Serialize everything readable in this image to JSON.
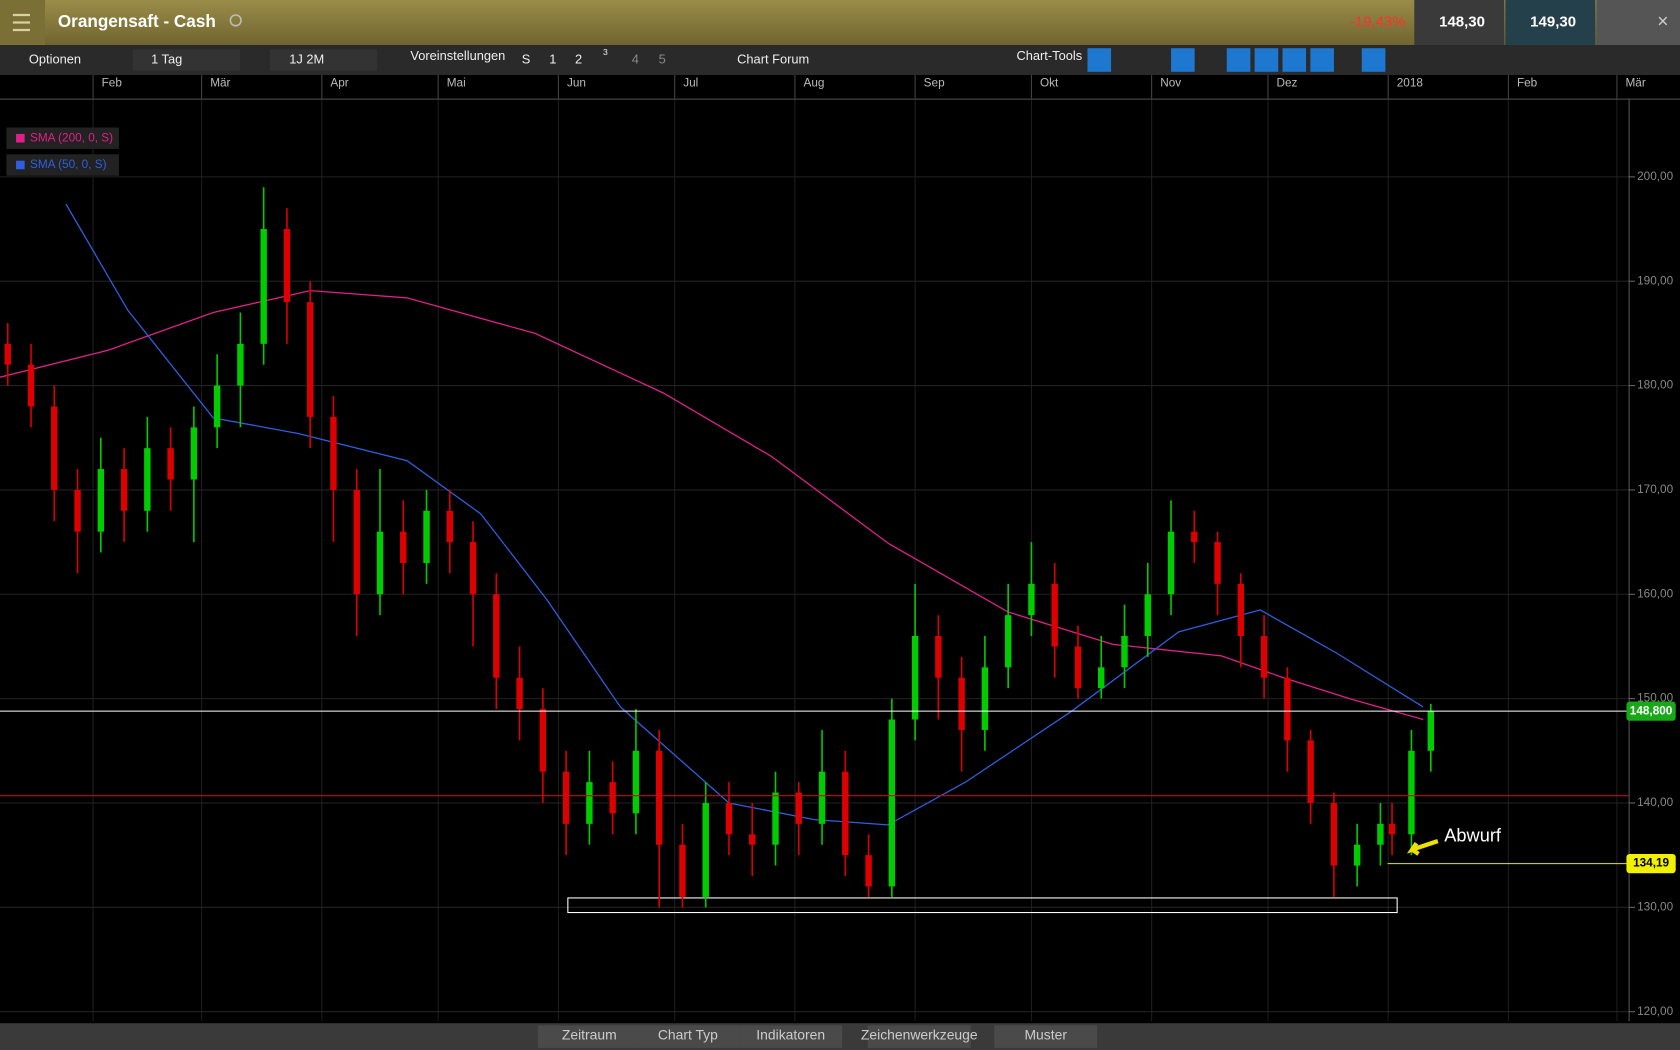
{
  "header": {
    "title": "Orangensaft - Cash",
    "change": "-19,43%",
    "bid": "148,30",
    "ask": "149,30"
  },
  "toolbar": {
    "options": "Optionen",
    "interval": "1 Tag",
    "range": "1J 2M",
    "presets": "Voreinstellungen",
    "slots": [
      "S",
      "1",
      "2",
      "3",
      "4",
      "5"
    ],
    "forum": "Chart Forum",
    "tools": "Chart-Tools"
  },
  "footer": {
    "tabs": [
      "Zeitraum",
      "Chart Typ",
      "Indikatoren",
      "Zeichenwerkzeuge",
      "Muster"
    ]
  },
  "chart_data": {
    "type": "candlestick",
    "up_color": "#00cc00",
    "down_color": "#dd0000",
    "xlim": [
      0,
      420
    ],
    "ylim": [
      119.1,
      207.4
    ],
    "xticks": [
      {
        "value": 24,
        "label": "Feb"
      },
      {
        "value": 52,
        "label": "Mär"
      },
      {
        "value": 83,
        "label": "Apr"
      },
      {
        "value": 113,
        "label": "Mai"
      },
      {
        "value": 144,
        "label": "Jun"
      },
      {
        "value": 174,
        "label": "Jul"
      },
      {
        "value": 205,
        "label": "Aug"
      },
      {
        "value": 236,
        "label": "Sep"
      },
      {
        "value": 266,
        "label": "Okt"
      },
      {
        "value": 297,
        "label": "Nov"
      },
      {
        "value": 327,
        "label": "Dez"
      },
      {
        "value": 358,
        "label": "2018"
      },
      {
        "value": 389,
        "label": "Feb"
      },
      {
        "value": 417,
        "label": "Mär"
      }
    ],
    "yticks": [
      {
        "value": 120,
        "label": "120,00"
      },
      {
        "value": 130,
        "label": "130,00"
      },
      {
        "value": 140,
        "label": "140,00"
      },
      {
        "value": 150,
        "label": "150,00"
      },
      {
        "value": 160,
        "label": "160,00"
      },
      {
        "value": 170,
        "label": "170,00"
      },
      {
        "value": 180,
        "label": "180,00"
      },
      {
        "value": 190,
        "label": "190,00"
      },
      {
        "value": 200,
        "label": "200,00"
      }
    ],
    "grid": true,
    "x": [
      2,
      8,
      14,
      20,
      26,
      32,
      38,
      44,
      50,
      56,
      62,
      68,
      74,
      80,
      86,
      92,
      98,
      104,
      110,
      116,
      122,
      128,
      134,
      140,
      146,
      152,
      158,
      164,
      170,
      176,
      182,
      188,
      194,
      200,
      206,
      212,
      218,
      224,
      230,
      236,
      242,
      248,
      254,
      260,
      266,
      272,
      278,
      284,
      290,
      296,
      302,
      308,
      314,
      320,
      326,
      332,
      338,
      344,
      350,
      356,
      359,
      364,
      369
    ],
    "open": [
      184,
      182,
      178,
      170,
      166,
      172,
      168,
      174,
      171,
      176,
      180,
      184,
      195,
      188,
      177,
      170,
      160,
      166,
      163,
      168,
      165,
      160,
      152,
      149,
      143,
      138,
      142,
      139,
      145,
      136,
      131,
      140,
      137,
      136,
      141,
      138,
      143,
      135,
      132,
      148,
      156,
      152,
      147,
      153,
      158,
      161,
      155,
      151,
      153,
      156,
      160,
      166,
      165,
      161,
      156,
      152,
      146,
      140,
      134,
      136,
      138,
      137,
      145
    ],
    "high": [
      186,
      184,
      180,
      172,
      175,
      174,
      177,
      176,
      178,
      183,
      187,
      199,
      197,
      190,
      179,
      172,
      172,
      169,
      170,
      170,
      167,
      162,
      155,
      151,
      145,
      145,
      144,
      149,
      147,
      138,
      142,
      142,
      140,
      143,
      142,
      147,
      145,
      137,
      150,
      161,
      158,
      154,
      156,
      161,
      165,
      163,
      157,
      156,
      159,
      163,
      169,
      168,
      166,
      162,
      158,
      153,
      147,
      141,
      138,
      140,
      140,
      147,
      149.5
    ],
    "low": [
      180,
      176,
      167,
      162,
      164,
      165,
      166,
      168,
      165,
      174,
      176,
      182,
      184,
      174,
      165,
      156,
      158,
      160,
      161,
      162,
      155,
      149,
      146,
      140,
      135,
      136,
      137,
      137,
      130,
      130,
      130,
      135,
      133,
      134,
      135,
      136,
      133,
      131,
      131,
      146,
      148,
      143,
      145,
      151,
      156,
      152,
      150,
      150,
      151,
      154,
      158,
      163,
      158,
      153,
      150,
      143,
      138,
      131,
      132,
      134,
      135,
      135,
      143
    ],
    "close": [
      182,
      178,
      170,
      166,
      172,
      168,
      174,
      171,
      176,
      180,
      184,
      195,
      188,
      177,
      170,
      160,
      166,
      163,
      168,
      165,
      160,
      152,
      149,
      143,
      138,
      142,
      139,
      145,
      136,
      131,
      140,
      137,
      136,
      141,
      138,
      143,
      135,
      132,
      148,
      156,
      152,
      147,
      153,
      158,
      161,
      155,
      151,
      153,
      156,
      160,
      166,
      165,
      161,
      156,
      152,
      146,
      140,
      134,
      136,
      138,
      137,
      145,
      148.8
    ],
    "lines": [
      {
        "name": "SMA (200, 0, S)",
        "color": "#e0208a",
        "x": [
          0,
          28,
          55,
          80,
          105,
          138,
          171,
          199,
          229,
          260,
          287,
          315,
          331,
          348,
          367
        ],
        "values": [
          180.8,
          183.4,
          187,
          189.1,
          188.4,
          185,
          179.3,
          173.2,
          164.9,
          158.3,
          155.2,
          154.1,
          152,
          150,
          148
        ]
      },
      {
        "name": "SMA (50, 0, S)",
        "color": "#2f5fe0",
        "x": [
          17,
          33,
          55,
          77,
          105,
          124,
          141,
          160,
          188,
          210,
          229,
          249,
          276,
          304,
          325,
          345,
          367
        ],
        "values": [
          197.4,
          187.2,
          176.9,
          175.4,
          172.8,
          167.7,
          159.5,
          149.2,
          140,
          138.4,
          137.9,
          142,
          148.7,
          156.4,
          158.5,
          154.3,
          149.2
        ]
      }
    ],
    "levels": [
      {
        "value": 148.8,
        "label": "148,800",
        "color": "#ffffff",
        "badge": "#18a818"
      },
      {
        "value": 140.7,
        "color": "#c01010"
      },
      {
        "value": 134.19,
        "label": "134,19",
        "color": "#e8e800",
        "badge": "#f0f000"
      }
    ],
    "zone": [
      129.5,
      130.9
    ],
    "annotation": "Abwurf"
  }
}
